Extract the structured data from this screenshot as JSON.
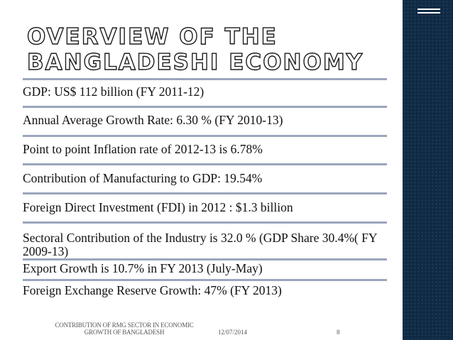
{
  "slide": {
    "title_lines": [
      "OVERVIEW OF THE",
      "BANGLADESHI ECONOMY"
    ],
    "items": [
      "GDP: US$ 112 billion (FY 2011-12)",
      "Annual Average Growth Rate: 6.30 % (FY 2010-13)",
      "Point to point Inflation rate of 2012-13 is 6.78%",
      "Contribution of Manufacturing to GDP: 19.54%",
      "Foreign Direct Investment (FDI) in 2012 : $1.3 billion",
      "Sectoral Contribution of the Industry is 32.0 % (GDP Share 30.4%( FY 2009-13)",
      "Export Growth is 10.7% in FY 2013 (July-May)",
      "Foreign Exchange Reserve Growth: 47% (FY 2013)"
    ],
    "footer": {
      "topic": "CONTRIBUTION OF RMG SECTOR IN ECONOMIC GROWTH OF BANGLADESH",
      "date": "12/07/2014",
      "page": "8"
    },
    "colors": {
      "side_bar": "#0f2a45",
      "divider": "#9aa6bd"
    }
  }
}
